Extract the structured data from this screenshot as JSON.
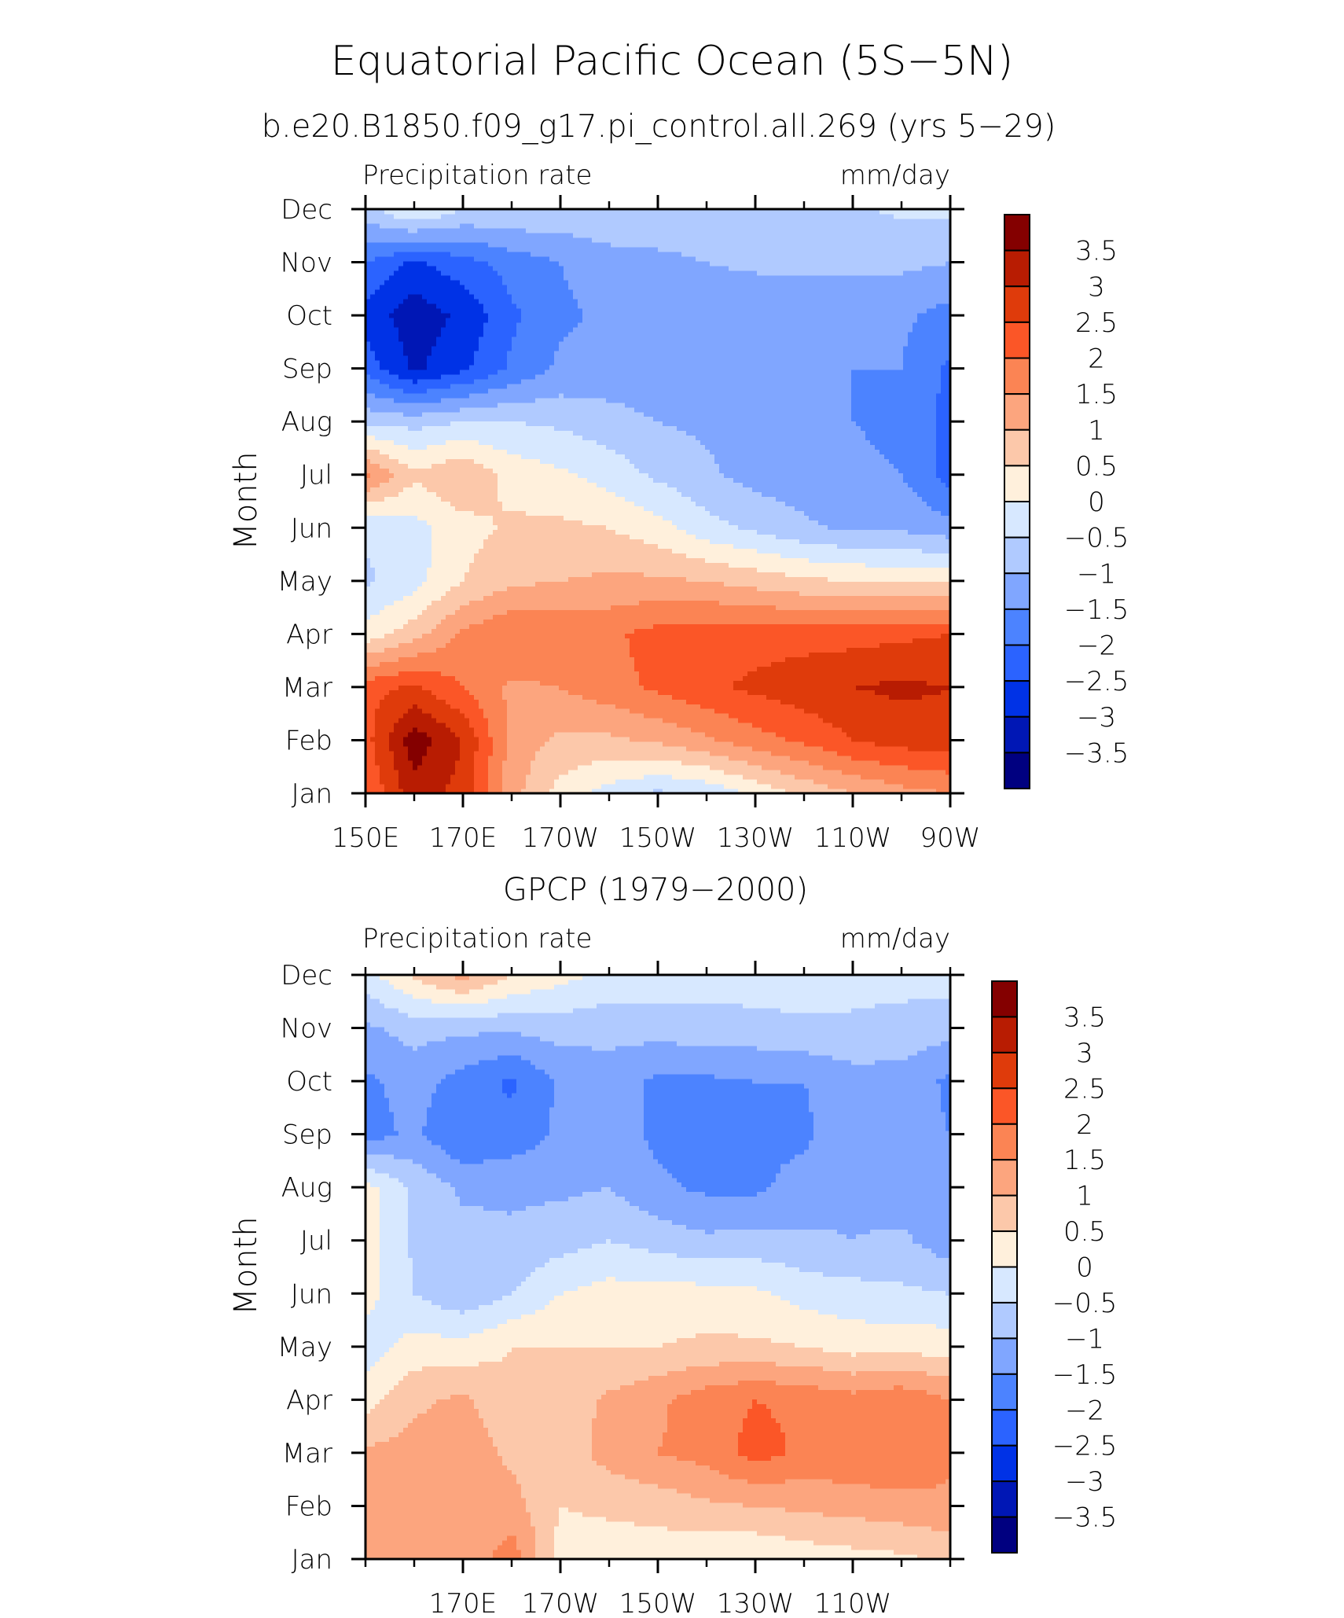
{
  "figure": {
    "title": "Equatorial Pacific Ocean (5S−5N)",
    "colors": [
      "#000080",
      "#0017b5",
      "#0032e6",
      "#2b63ff",
      "#4c83ff",
      "#80a6ff",
      "#b0caff",
      "#d7e8ff",
      "#fff0dc",
      "#fcc8aa",
      "#fca57e",
      "#fb8454",
      "#fb5627",
      "#df3b0b",
      "#b81c02",
      "#840000"
    ]
  },
  "chart_data": [
    {
      "type": "heatmap",
      "title": "b.e20.B1850.f09_g17.pi_control.all.269 (yrs 5−29)",
      "left_label": "Precipitation rate",
      "right_label": "mm/day",
      "xlabel": "",
      "ylabel": "Month",
      "x_tick_labels": [
        "150E",
        "170E",
        "170W",
        "150W",
        "130W",
        "110W",
        "90W"
      ],
      "y_tick_labels": [
        "Jan",
        "Feb",
        "Mar",
        "Apr",
        "May",
        "Jun",
        "Jul",
        "Aug",
        "Sep",
        "Oct",
        "Nov",
        "Dec"
      ],
      "colorbar_labels": [
        "3.5",
        "3",
        "2.5",
        "2",
        "1.5",
        "1",
        "0.5",
        "0",
        "−0.5",
        "−1",
        "−1.5",
        "−2",
        "−2.5",
        "−3",
        "−3.5"
      ],
      "levels": [
        -3.5,
        -3,
        -2.5,
        -2,
        -1.5,
        -1,
        -0.5,
        0,
        0.5,
        1,
        1.5,
        2,
        2.5,
        3,
        3.5
      ],
      "xlim": [
        150,
        270
      ],
      "lon_grid": [
        150,
        160,
        170,
        180,
        190,
        200,
        210,
        220,
        230,
        240,
        250,
        260,
        270
      ],
      "month_grid": [
        "Jan",
        "Feb",
        "Mar",
        "Apr",
        "May",
        "Jun",
        "Jul",
        "Aug",
        "Sep",
        "Oct",
        "Nov",
        "Dec"
      ],
      "z": [
        [
          2.0,
          3.3,
          2.8,
          1.2,
          0.3,
          -0.2,
          -0.6,
          -0.4,
          0.1,
          0.6,
          1.0,
          1.3,
          1.5
        ],
        [
          2.3,
          3.8,
          3.0,
          1.3,
          0.9,
          0.9,
          1.1,
          1.4,
          1.8,
          2.1,
          2.5,
          2.7,
          2.8
        ],
        [
          2.3,
          2.6,
          2.0,
          1.4,
          1.5,
          1.8,
          2.1,
          2.4,
          2.6,
          2.8,
          3.0,
          3.1,
          3.0
        ],
        [
          0.2,
          0.8,
          1.6,
          2.0,
          1.9,
          1.9,
          2.2,
          2.3,
          2.3,
          2.3,
          2.3,
          2.4,
          2.5
        ],
        [
          -0.6,
          -0.2,
          0.5,
          0.9,
          1.0,
          1.1,
          1.1,
          1.0,
          0.8,
          0.6,
          0.5,
          0.4,
          0.4
        ],
        [
          -0.4,
          -0.2,
          0.3,
          0.6,
          0.6,
          0.5,
          0.2,
          -0.3,
          -0.6,
          -0.9,
          -1.1,
          -1.1,
          -1.3
        ],
        [
          1.6,
          0.6,
          1.0,
          0.3,
          0.1,
          -0.2,
          -0.6,
          -0.9,
          -1.2,
          -1.3,
          -1.4,
          -1.5,
          -2.2
        ],
        [
          -0.6,
          -0.7,
          -0.5,
          -0.5,
          -0.6,
          -0.8,
          -1.0,
          -1.1,
          -1.3,
          -1.4,
          -1.5,
          -1.6,
          -2.2
        ],
        [
          -2.2,
          -3.1,
          -2.6,
          -1.9,
          -1.4,
          -1.3,
          -1.3,
          -1.4,
          -1.5,
          -1.5,
          -1.5,
          -1.5,
          -2.1
        ],
        [
          -2.7,
          -3.3,
          -2.9,
          -2.1,
          -1.6,
          -1.4,
          -1.4,
          -1.4,
          -1.4,
          -1.4,
          -1.4,
          -1.4,
          -1.7
        ],
        [
          -2.0,
          -2.6,
          -2.2,
          -1.8,
          -1.5,
          -1.2,
          -1.1,
          -1.0,
          -0.9,
          -0.9,
          -0.9,
          -0.9,
          -1.0
        ],
        [
          -0.7,
          0.1,
          -0.5,
          -0.5,
          -0.6,
          -0.6,
          -0.7,
          -0.7,
          -0.6,
          -0.6,
          -0.6,
          -0.4,
          -0.4
        ]
      ]
    },
    {
      "type": "heatmap",
      "title": "GPCP (1979−2000)",
      "left_label": "Precipitation rate",
      "right_label": "mm/day",
      "xlabel": "",
      "ylabel": "Month",
      "x_tick_labels": [
        "170E",
        "170W",
        "150W",
        "130W",
        "110W"
      ],
      "y_tick_labels": [
        "Jan",
        "Feb",
        "Mar",
        "Apr",
        "May",
        "Jun",
        "Jul",
        "Aug",
        "Sep",
        "Oct",
        "Nov",
        "Dec"
      ],
      "colorbar_labels": [
        "3.5",
        "3",
        "2.5",
        "2",
        "1.5",
        "1",
        "0.5",
        "0",
        "−0.5",
        "−1",
        "−1.5",
        "−2",
        "−2.5",
        "−3",
        "−3.5"
      ],
      "levels": [
        -3.5,
        -3,
        -2.5,
        -2,
        -1.5,
        -1,
        -0.5,
        0,
        0.5,
        1,
        1.5,
        2,
        2.5,
        3,
        3.5
      ],
      "xlim": [
        150,
        270
      ],
      "lon_grid": [
        150,
        160,
        170,
        180,
        190,
        200,
        210,
        220,
        230,
        240,
        250,
        260,
        270
      ],
      "month_grid": [
        "Jan",
        "Feb",
        "Mar",
        "Apr",
        "May",
        "Jun",
        "Jul",
        "Aug",
        "Sep",
        "Oct",
        "Nov",
        "Dec"
      ],
      "z": [
        [
          1.3,
          1.3,
          1.1,
          1.8,
          0.3,
          0.2,
          0.2,
          0.1,
          0.0,
          0.2,
          0.3,
          0.4,
          0.6
        ],
        [
          1.2,
          1.3,
          1.1,
          1.2,
          0.5,
          0.6,
          0.7,
          0.9,
          1.0,
          1.1,
          1.2,
          1.3,
          1.4
        ],
        [
          1.1,
          1.2,
          1.3,
          0.9,
          0.7,
          1.2,
          1.5,
          1.7,
          2.2,
          1.9,
          1.9,
          2.0,
          1.6
        ],
        [
          0.3,
          0.9,
          1.1,
          0.6,
          0.7,
          1.1,
          1.4,
          1.8,
          2.0,
          1.9,
          1.7,
          1.9,
          1.5
        ],
        [
          -0.3,
          0.2,
          0.2,
          0.5,
          0.5,
          0.5,
          0.5,
          0.6,
          0.6,
          0.5,
          0.3,
          0.3,
          0.3
        ],
        [
          0.2,
          -0.5,
          -0.9,
          -0.5,
          0.0,
          0.2,
          0.2,
          0.2,
          0.1,
          -0.2,
          -0.3,
          -0.4,
          -0.5
        ],
        [
          0.3,
          -0.6,
          -0.8,
          -0.9,
          -0.7,
          -0.5,
          -0.7,
          -0.9,
          -0.8,
          -0.9,
          -1.0,
          -0.9,
          -1.3
        ],
        [
          0.2,
          -0.6,
          -1.1,
          -1.1,
          -1.1,
          -1.0,
          -1.4,
          -1.6,
          -1.6,
          -1.3,
          -1.1,
          -1.3,
          -1.4
        ],
        [
          -1.7,
          -1.4,
          -2.0,
          -1.8,
          -1.4,
          -1.3,
          -1.6,
          -1.7,
          -1.6,
          -1.6,
          -1.1,
          -1.3,
          -1.5
        ],
        [
          -1.6,
          -1.3,
          -1.7,
          -2.1,
          -1.4,
          -1.3,
          -1.6,
          -1.6,
          -1.5,
          -1.5,
          -1.2,
          -1.2,
          -1.6
        ],
        [
          -1.1,
          -0.8,
          -0.9,
          -0.9,
          -0.8,
          -0.8,
          -0.8,
          -0.7,
          -0.7,
          -0.6,
          -0.6,
          -0.7,
          -0.8
        ],
        [
          -0.2,
          0.6,
          1.2,
          0.5,
          0.2,
          -0.2,
          -0.2,
          -0.3,
          -0.2,
          -0.2,
          -0.3,
          -0.3,
          -0.3
        ]
      ]
    }
  ]
}
